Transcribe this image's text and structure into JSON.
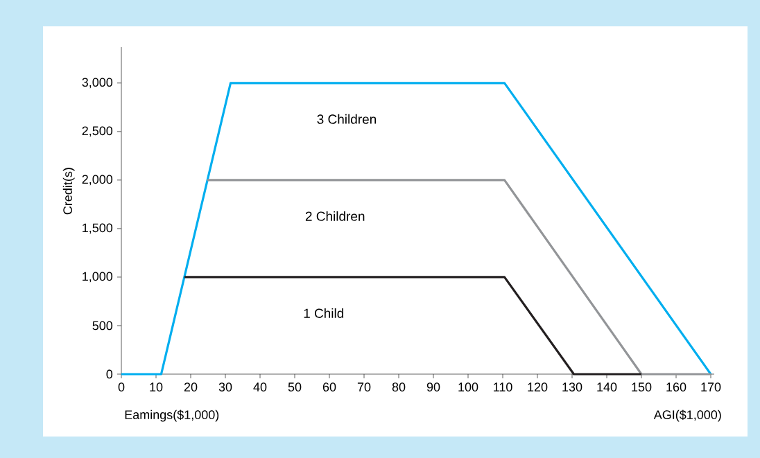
{
  "chart_data": {
    "type": "line",
    "xlabel": "Eamings($1,000)",
    "ylabel": "Credit(s)",
    "annotations": [
      "AGI($1,000)"
    ],
    "series": [
      {
        "name": "3 Children",
        "color": "#00aeef",
        "x": [
          0,
          11.5,
          31.5,
          110.5,
          170
        ],
        "values": [
          0,
          0,
          3000,
          3000,
          0
        ]
      },
      {
        "name": "2 Children",
        "color": "#939598",
        "x": [
          24.8,
          110.5,
          150,
          170
        ],
        "values": [
          2000,
          2000,
          0,
          0
        ]
      },
      {
        "name": "1 Child",
        "color": "#231f20",
        "x": [
          18.2,
          110.5,
          130.5,
          150
        ],
        "values": [
          1000,
          1000,
          0,
          0
        ]
      }
    ],
    "xlim": [
      0,
      171
    ],
    "ylim": [
      0,
      3370
    ],
    "xticks": [
      0,
      10,
      20,
      30,
      40,
      50,
      60,
      70,
      80,
      90,
      100,
      110,
      120,
      130,
      140,
      150,
      160,
      170
    ],
    "yticks": [
      0,
      500,
      {
        "value": 1000,
        "label": "1,000"
      },
      {
        "value": 1500,
        "label": "1,500"
      },
      {
        "value": 2000,
        "label": "2,000"
      },
      {
        "value": 2500,
        "label": "2,500"
      },
      {
        "value": 3000,
        "label": "3,000"
      }
    ]
  }
}
